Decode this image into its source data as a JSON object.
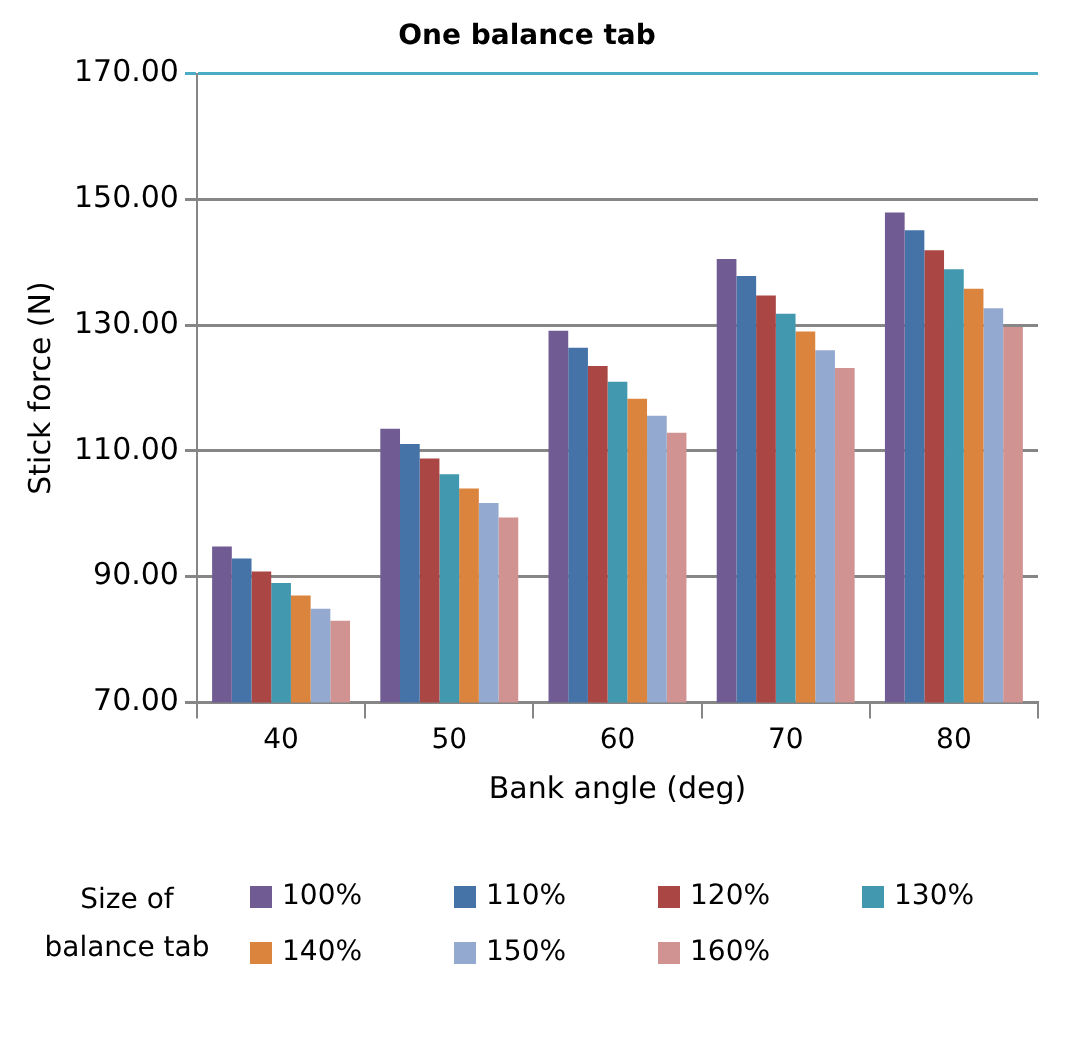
{
  "chart_data": {
    "type": "bar",
    "title": "One balance tab",
    "xlabel": "Bank angle (deg)",
    "ylabel": "Stick force (N)",
    "legend_title": "Size of balance tab",
    "categories": [
      "40",
      "50",
      "60",
      "70",
      "80"
    ],
    "series": [
      {
        "name": "100%",
        "color": "#715b93",
        "values": [
          94.8,
          113.5,
          129.1,
          140.5,
          147.9
        ]
      },
      {
        "name": "110%",
        "color": "#4572a7",
        "values": [
          92.9,
          111.1,
          126.4,
          137.8,
          145.1
        ]
      },
      {
        "name": "120%",
        "color": "#aa4643",
        "values": [
          90.8,
          108.8,
          123.5,
          134.7,
          141.9
        ]
      },
      {
        "name": "130%",
        "color": "#4198af",
        "values": [
          89.0,
          106.3,
          121.0,
          131.8,
          138.9
        ]
      },
      {
        "name": "140%",
        "color": "#db843d",
        "values": [
          87.0,
          104.0,
          118.3,
          129.0,
          135.8
        ]
      },
      {
        "name": "150%",
        "color": "#93a9cf",
        "values": [
          84.9,
          101.7,
          115.6,
          126.0,
          132.7
        ]
      },
      {
        "name": "160%",
        "color": "#d19392",
        "values": [
          83.0,
          99.4,
          112.9,
          123.2,
          129.7
        ]
      }
    ],
    "ylim": [
      70,
      170
    ],
    "yticks": [
      {
        "value": 70,
        "label": "70.00"
      },
      {
        "value": 90,
        "label": "90.00"
      },
      {
        "value": 110,
        "label": "110.00"
      },
      {
        "value": 130,
        "label": "130.00"
      },
      {
        "value": 150,
        "label": "150.00"
      },
      {
        "value": 170,
        "label": "170.00"
      }
    ],
    "grid": "y",
    "legend": "bottom"
  }
}
